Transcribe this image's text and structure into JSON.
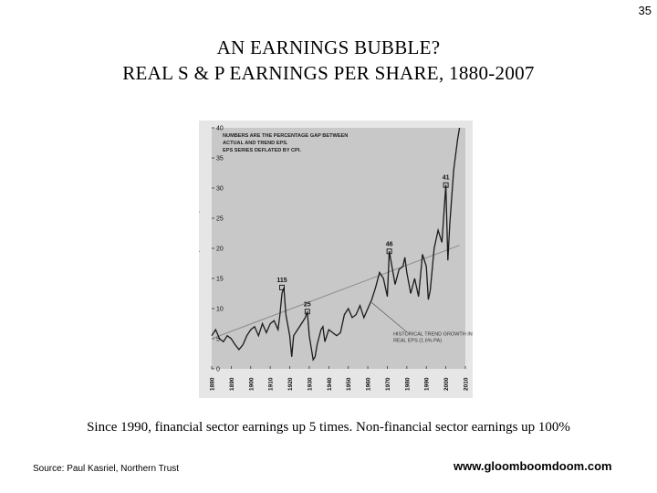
{
  "page_number": "35",
  "title_line1": "AN  EARNINGS  BUBBLE?",
  "title_line2": "REAL  S & P  EARNINGS  PER  SHARE,  1880-2007",
  "caption": "Since 1990, financial sector earnings up 5 times.  Non-financial sector earnings up 100%",
  "source": "Source: Paul Kasriel, Northern Trust",
  "website": "www.gloomboomdoom.com",
  "colors": {
    "plot_bg": "#c8c8c8",
    "line": "#1a1a1a",
    "trend": "#8a8a8a",
    "frame_bg": "#e6e6e6"
  },
  "chart_data": {
    "type": "line",
    "ylabel": "EPS INDEX (REAL TERMS)",
    "xlabel": "",
    "xlim": [
      1880,
      2010
    ],
    "ylim": [
      0,
      40
    ],
    "x_ticks": [
      "1880",
      "1890",
      "1900",
      "1910",
      "1920",
      "1930",
      "1940",
      "1950",
      "1960",
      "1970",
      "1980",
      "1990",
      "2000",
      "2010"
    ],
    "y_ticks": [
      "0",
      "5",
      "10",
      "15",
      "20",
      "25",
      "30",
      "35",
      "40"
    ],
    "notes": [
      "NUMBERS ARE THE PERCENTAGE GAP BETWEEN",
      "ACTUAL AND TREND EPS.",
      "EPS SERIES DEFLATED BY CPI."
    ],
    "trend_label": [
      "HISTORICAL TREND GROWTH IN",
      "REAL EPS (1.6% PA)"
    ],
    "series": [
      {
        "x": [
          1880,
          1882,
          1884,
          1886,
          1888,
          1890,
          1892,
          1894,
          1896,
          1898,
          1900,
          1902,
          1904,
          1906,
          1908,
          1910,
          1912,
          1914,
          1915,
          1916,
          1917,
          1918,
          1920,
          1921,
          1922,
          1924,
          1926,
          1928,
          1929,
          1930,
          1932,
          1933,
          1934,
          1936,
          1937,
          1938,
          1940,
          1942,
          1944,
          1946,
          1948,
          1950,
          1952,
          1954,
          1956,
          1958,
          1960,
          1962,
          1964,
          1966,
          1968,
          1970,
          1971,
          1974,
          1976,
          1978,
          1979,
          1980,
          1982,
          1984,
          1986,
          1988,
          1990,
          1991,
          1992,
          1994,
          1996,
          1998,
          2000,
          2001,
          2002,
          2004,
          2006,
          2007
        ],
        "y": [
          5.5,
          6.5,
          5.0,
          4.5,
          5.5,
          5.0,
          4.0,
          3.2,
          4.0,
          5.5,
          6.5,
          7.0,
          5.5,
          7.5,
          6.0,
          7.5,
          8.0,
          6.5,
          9.0,
          12.5,
          13.5,
          9.0,
          5.5,
          2.0,
          5.5,
          6.5,
          7.5,
          8.5,
          9.5,
          5.5,
          1.5,
          2.0,
          4.0,
          6.5,
          7.0,
          4.5,
          6.5,
          6.0,
          5.5,
          6.0,
          9.0,
          10.0,
          8.5,
          9.0,
          10.5,
          8.5,
          10.0,
          11.5,
          13.5,
          16.0,
          15.0,
          12.0,
          19.5,
          14.0,
          16.5,
          17.0,
          18.5,
          16.0,
          12.5,
          15.0,
          12.0,
          19.0,
          17.0,
          11.5,
          13.0,
          20.0,
          23.0,
          21.0,
          30.5,
          18.0,
          24.0,
          33.0,
          38.0,
          40.0
        ]
      }
    ],
    "trend": {
      "x": [
        1880,
        2007
      ],
      "y": [
        5.0,
        20.5
      ]
    },
    "annotations": [
      {
        "label": "115",
        "x": 1916,
        "y": 13.5
      },
      {
        "label": "25",
        "x": 1929,
        "y": 9.5
      },
      {
        "label": "46",
        "x": 1971,
        "y": 19.5
      },
      {
        "label": "41",
        "x": 2000,
        "y": 30.5
      }
    ]
  }
}
